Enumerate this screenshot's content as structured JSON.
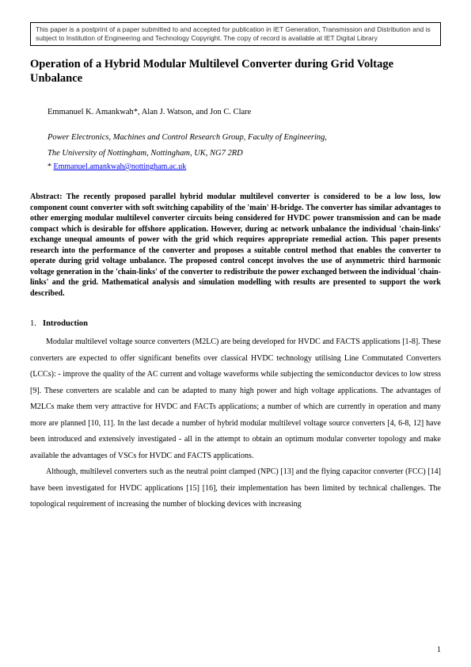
{
  "notice": "This paper is a postprint of a paper submitted to and accepted for publication in IET Generation, Transmission and Distribution and is subject to Institution of Engineering and Technology Copyright. The copy of record is available at IET Digital Library",
  "title": "Operation of a Hybrid Modular Multilevel Converter during Grid Voltage Unbalance",
  "authors": "Emmanuel K. Amankwah*, Alan J. Watson, and Jon C. Clare",
  "affiliation_line1": "Power Electronics, Machines and Control Research Group, Faculty of Engineering,",
  "affiliation_line2": "The University of Nottingham, Nottingham, UK, NG7 2RD",
  "email_prefix": "* ",
  "email": "Emmanuel.amankwah@nottingham.ac.uk",
  "abstract_label": "Abstract: ",
  "abstract_body": "The recently proposed parallel hybrid modular multilevel converter is considered to be a low loss, low component count converter with soft switching capability of the 'main' H-bridge. The converter has similar advantages to other emerging modular multilevel converter circuits being considered for HVDC power transmission and can be made compact which is desirable for offshore application. However, during ac network unbalance the individual 'chain-links' exchange unequal amounts of power with the grid which requires appropriate remedial action. This paper presents research into the performance of the converter and proposes a suitable control method that enables the converter to operate during grid voltage unbalance. The proposed control concept involves the use of asymmetric third harmonic voltage generation in the 'chain-links' of the converter to redistribute the power exchanged between the individual 'chain-links' and the grid. Mathematical analysis and simulation modelling with results are presented to support the work described.",
  "section_number": "1.",
  "section_title": "Introduction",
  "para1": "Modular multilevel voltage source converters (M2LC) are being developed for HVDC and FACTS applications [1-8]. These converters are expected to offer significant benefits over classical HVDC technology utilising Line Commutated Converters (LCCs): - improve the quality of the AC current and voltage waveforms while subjecting the semiconductor devices to low stress [9]. These converters are scalable and can be adapted to many high power and high voltage applications. The advantages of M2LCs make them very attractive for HVDC and FACTs applications; a number of which are currently in operation and many more are planned [10, 11]. In the last decade a number of hybrid modular multilevel voltage source converters [4, 6-8, 12] have been introduced and extensively investigated - all in the attempt to obtain an optimum modular converter topology and make available the advantages of VSCs for HVDC and FACTS applications.",
  "para2": "Although, multilevel converters such as the neutral point clamped (NPC) [13] and the flying capacitor converter (FCC) [14] have been investigated for HVDC applications [15] [16], their implementation has been limited by technical challenges.  The topological requirement of increasing the number of blocking devices with increasing",
  "page_number": "1"
}
